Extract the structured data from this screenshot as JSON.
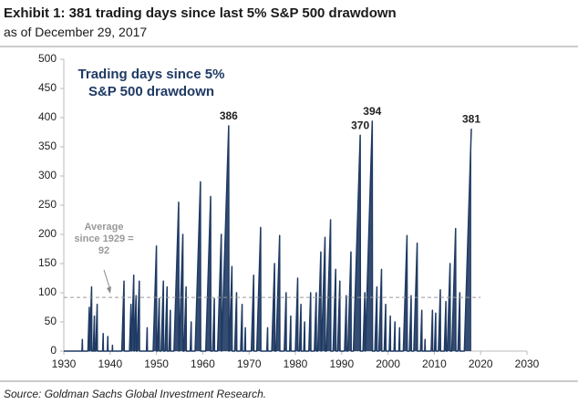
{
  "chart_data": {
    "type": "area",
    "title": "Exhibit 1: 381 trading days since last 5% S&P 500 drawdown",
    "subtitle": "as of December 29, 2017",
    "source": "Source: Goldman Sachs Global Investment Research.",
    "average": 92,
    "average_label": "Average since 1929 = 92",
    "xlim": [
      1930,
      2030
    ],
    "xticks": [
      1930,
      1940,
      1950,
      1960,
      1970,
      1980,
      1990,
      2000,
      2010,
      2020,
      2030
    ],
    "ylim": [
      0,
      500
    ],
    "yticks": [
      0,
      50,
      100,
      150,
      200,
      250,
      300,
      350,
      400,
      450,
      500
    ],
    "grid": false,
    "series": [
      {
        "name": "Trading days since 5% S&P 500 drawdown",
        "color": "#1f3a63",
        "x": [
          1930,
          1933.92,
          1934.0,
          1934.05,
          1935.2,
          1935.5,
          1935.55,
          1935.56,
          1936.0,
          1936.05,
          1936.36,
          1936.6,
          1936.65,
          1936.88,
          1937.2,
          1937.25,
          1938.38,
          1938.5,
          1938.55,
          1939.4,
          1939.5,
          1939.55,
          1940.46,
          1940.5,
          1940.55,
          1942.52,
          1943.0,
          1943.05,
          1944.18,
          1944.5,
          1944.55,
          1944.6,
          1945.1,
          1945.15,
          1945.2,
          1945.6,
          1945.65,
          1945.82,
          1946.3,
          1946.35,
          1947.84,
          1948.0,
          1948.05,
          1949.29,
          1950.0,
          1950.05,
          1950.24,
          1950.6,
          1950.65,
          1951.02,
          1951.5,
          1951.55,
          1951.86,
          1952.3,
          1952.35,
          1952.72,
          1953.0,
          1953.05,
          1953.79,
          1954.8,
          1954.85,
          1954.9,
          1955.7,
          1955.75,
          1955.96,
          1956.4,
          1956.45,
          1957.3,
          1957.5,
          1957.55,
          1958.35,
          1959.5,
          1959.55,
          1960.65,
          1961.7,
          1961.75,
          1962.14,
          1962.5,
          1962.55,
          1963.2,
          1964.0,
          1964.05,
          1964.07,
          1965.6,
          1965.65,
          1965.72,
          1966.3,
          1966.35,
          1966.9,
          1967.3,
          1967.35,
          1968.18,
          1968.5,
          1968.55,
          1969.04,
          1969.2,
          1969.25,
          1970.48,
          1971.0,
          1971.05,
          1971.66,
          1972.5,
          1972.55,
          1973.84,
          1974.0,
          1974.05,
          1974.9,
          1975.5,
          1975.55,
          1975.81,
          1976.6,
          1976.65,
          1977.6,
          1978.0,
          1978.05,
          1978.76,
          1979.0,
          1979.05,
          1980.0,
          1980.5,
          1980.55,
          1980.88,
          1981.2,
          1981.25,
          1981.8,
          1982.0,
          1982.05,
          1982.9,
          1983.3,
          1983.35,
          1984.1,
          1984.5,
          1984.55,
          1984.83,
          1985.5,
          1985.55,
          1985.63,
          1986.4,
          1986.45,
          1986.71,
          1987.6,
          1987.65,
          1988.14,
          1988.7,
          1988.75,
          1989.12,
          1989.6,
          1989.65,
          1990.62,
          1991.0,
          1991.05,
          1991.33,
          1992.0,
          1992.05,
          1992.53,
          1994.0,
          1994.05,
          1994.6,
          1995.0,
          1995.05,
          1995.08,
          1996.6,
          1996.65,
          1997.16,
          1997.6,
          1997.65,
          1998.04,
          1998.6,
          1998.65,
          1999.18,
          1999.5,
          1999.55,
          2000.26,
          2000.5,
          2000.55,
          2001.3,
          2001.5,
          2001.55,
          2002.34,
          2002.5,
          2002.55,
          2003.31,
          2004.1,
          2004.15,
          2004.62,
          2005.0,
          2005.05,
          2005.57,
          2006.3,
          2006.35,
          2007.02,
          2007.3,
          2007.35,
          2007.92,
          2008.0,
          2008.05,
          2009.32,
          2009.6,
          2009.65,
          2010.04,
          2010.3,
          2010.35,
          2010.88,
          2011.3,
          2011.35,
          2012.16,
          2012.5,
          2012.55,
          2012.8,
          2013.4,
          2013.45,
          2013.77,
          2014.6,
          2014.65,
          2015.1,
          2015.5,
          2015.55,
          2016.48,
          2017.99
        ],
        "values": [
          0,
          0,
          20,
          0,
          0,
          75,
          0,
          0,
          110,
          0,
          0,
          60,
          0,
          0,
          80,
          0,
          0,
          30,
          0,
          0,
          25,
          0,
          0,
          10,
          0,
          0,
          120,
          0,
          0,
          80,
          0,
          0,
          130,
          0,
          0,
          95,
          0,
          0,
          120,
          0,
          0,
          40,
          0,
          0,
          180,
          0,
          0,
          90,
          0,
          0,
          120,
          0,
          0,
          110,
          0,
          0,
          70,
          0,
          0,
          255,
          0,
          0,
          200,
          0,
          0,
          110,
          0,
          0,
          50,
          0,
          0,
          290,
          0,
          0,
          265,
          0,
          0,
          90,
          0,
          0,
          200,
          0,
          0,
          386,
          0,
          0,
          145,
          0,
          0,
          100,
          0,
          0,
          80,
          0,
          0,
          40,
          0,
          0,
          130,
          0,
          0,
          212,
          0,
          0,
          40,
          0,
          0,
          150,
          0,
          0,
          198,
          0,
          0,
          100,
          0,
          0,
          60,
          0,
          0,
          125,
          0,
          0,
          80,
          0,
          0,
          50,
          0,
          0,
          100,
          0,
          0,
          100,
          0,
          0,
          170,
          0,
          0,
          195,
          0,
          0,
          225,
          0,
          0,
          140,
          0,
          0,
          120,
          0,
          0,
          95,
          0,
          0,
          170,
          0,
          0,
          370,
          0,
          0,
          100,
          0,
          0,
          394,
          0,
          0,
          110,
          0,
          0,
          140,
          0,
          0,
          80,
          0,
          0,
          60,
          0,
          0,
          50,
          0,
          0,
          40,
          0,
          0,
          198,
          0,
          0,
          95,
          0,
          0,
          185,
          0,
          0,
          70,
          0,
          0,
          20,
          0,
          0,
          70,
          0,
          0,
          65,
          0,
          0,
          105,
          0,
          0,
          85,
          0,
          0,
          150,
          0,
          0,
          210,
          0,
          0,
          100,
          0,
          0,
          381
        ]
      }
    ]
  }
}
